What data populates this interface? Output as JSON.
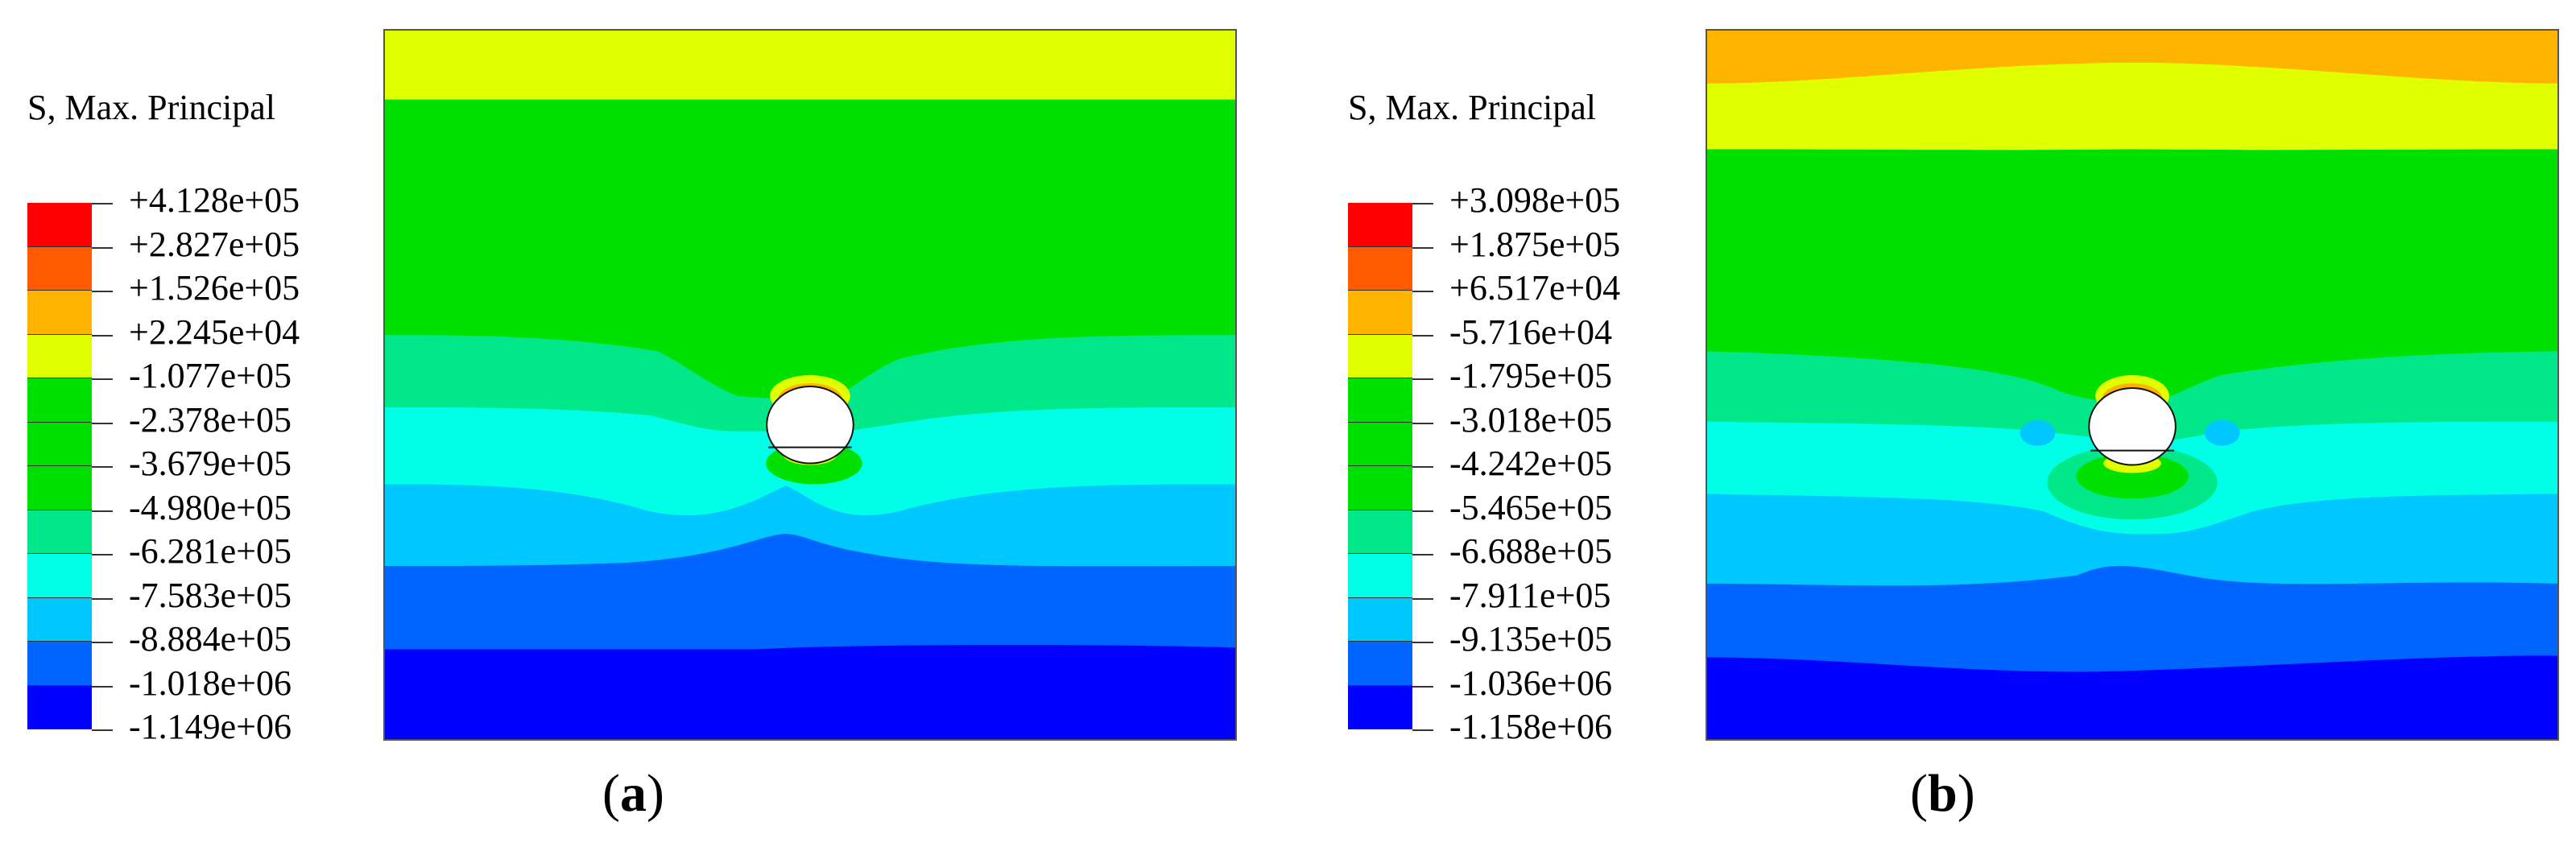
{
  "panels": [
    {
      "id": "a",
      "legend_title": "S, Max. Principal",
      "legend_values": [
        "+4.128e+05",
        "+2.827e+05",
        "+1.526e+05",
        "+2.245e+04",
        "-1.077e+05",
        "-2.378e+05",
        "-3.679e+05",
        "-4.980e+05",
        "-6.281e+05",
        "-7.583e+05",
        "-8.884e+05",
        "-1.018e+06",
        "-1.149e+06"
      ],
      "caption_open": "(",
      "caption_letter": "a",
      "caption_close": ")"
    },
    {
      "id": "b",
      "legend_title": "S, Max. Principal",
      "legend_values": [
        "+3.098e+05",
        "+1.875e+05",
        "+6.517e+04",
        "-5.716e+04",
        "-1.795e+05",
        "-3.018e+05",
        "-4.242e+05",
        "-5.465e+05",
        "-6.688e+05",
        "-7.911e+05",
        "-9.135e+05",
        "-1.036e+06",
        "-1.158e+06"
      ],
      "caption_open": "(",
      "caption_letter": "b",
      "caption_close": ")"
    }
  ],
  "legend_colors": [
    "#ff0000",
    "#ff5a00",
    "#ffb400",
    "#e0ff00",
    "#00e000",
    "#00e000",
    "#00e000",
    "#00e88a",
    "#00ffe6",
    "#00c8ff",
    "#0064ff",
    "#0000ff"
  ],
  "contour_colors": {
    "orange": "#ffb400",
    "yellow": "#e0ff00",
    "green": "#00e000",
    "mint": "#00e88a",
    "cyan": "#00ffe6",
    "sky": "#00c8ff",
    "blue": "#0064ff",
    "darkblue": "#0000ff",
    "red": "#ff0000",
    "hole": "#ffffff"
  }
}
